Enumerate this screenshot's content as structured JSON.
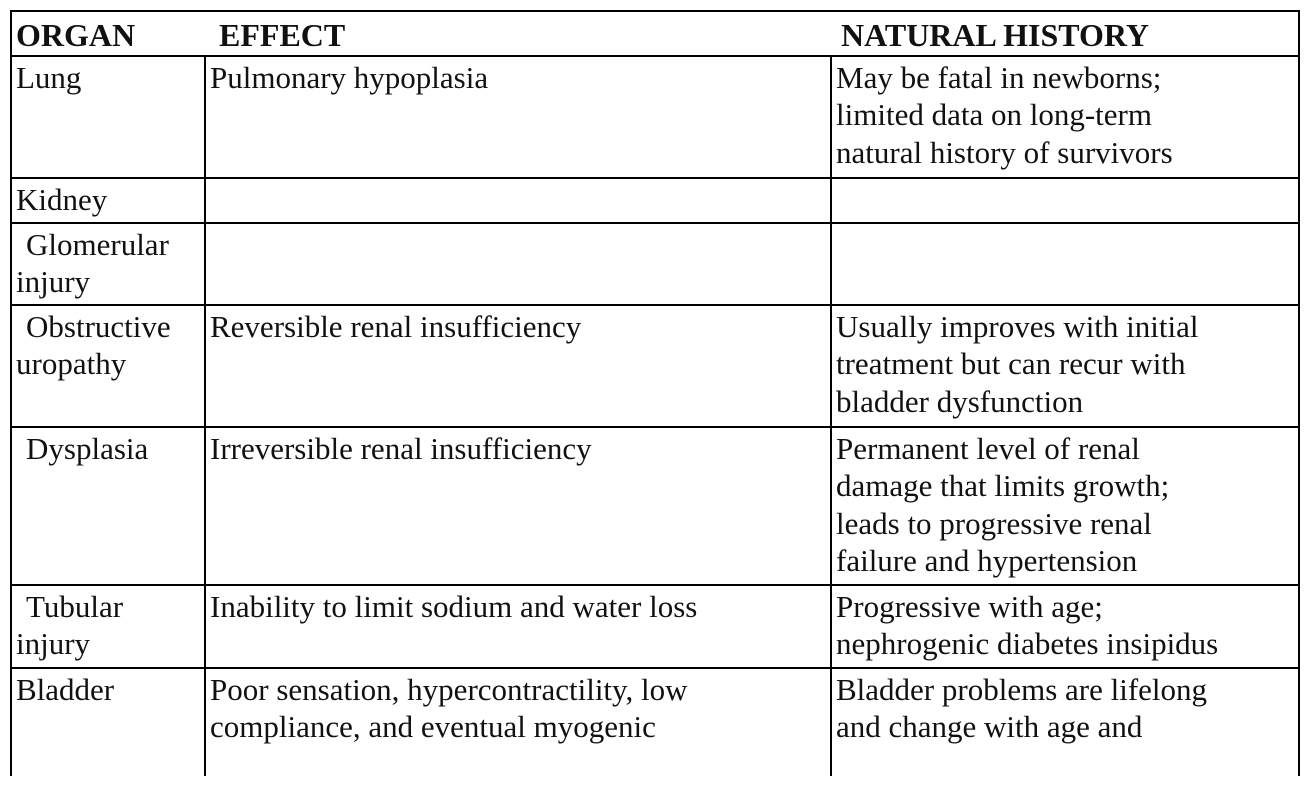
{
  "headers": {
    "organ": "ORGAN",
    "effect": "EFFECT",
    "history": "NATURAL HISTORY"
  },
  "rows": [
    {
      "organ": "Lung",
      "indent": false,
      "effect": "Pulmonary hypoplasia",
      "history": "May be fatal in newborns;\nlimited data on long-term\nnatural history of survivors"
    },
    {
      "organ": "Kidney",
      "indent": false,
      "effect": "",
      "history": ""
    },
    {
      "organ": "Glomerular\ninjury",
      "indent": true,
      "effect": "",
      "history": ""
    },
    {
      "organ": "Obstructive\nuropathy",
      "indent": true,
      "effect": "Reversible renal insufficiency",
      "history": "Usually improves with initial\ntreatment but can recur with\nbladder dysfunction"
    },
    {
      "organ": "Dysplasia",
      "indent": true,
      "effect": "Irreversible renal insufficiency",
      "history": "Permanent level of renal\ndamage that limits growth;\nleads to progressive renal\nfailure and hypertension"
    },
    {
      "organ": "Tubular\ninjury",
      "indent": true,
      "effect": "Inability to limit sodium and water loss",
      "history": "Progressive with age;\nnephrogenic diabetes insipidus"
    },
    {
      "organ": "Bladder",
      "indent": false,
      "effect": "Poor sensation, hypercontractility, low\ncompliance, and eventual myogenic",
      "history": "Bladder problems are lifelong\nand change with age and"
    }
  ]
}
